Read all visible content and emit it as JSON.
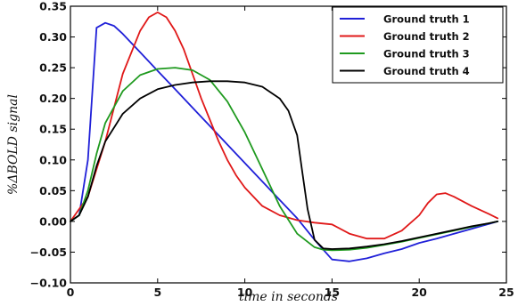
{
  "chart_data": {
    "type": "line",
    "xlabel": "time in seconds",
    "ylabel": "%ΔBOLD signal",
    "xlim": [
      0,
      25
    ],
    "ylim": [
      -0.1,
      0.35
    ],
    "x_ticks": [
      0,
      5,
      10,
      15,
      20,
      25
    ],
    "x_tick_labels": [
      "0",
      "5",
      "10",
      "15",
      "20",
      "25"
    ],
    "y_ticks": [
      -0.1,
      -0.05,
      0.0,
      0.05,
      0.1,
      0.15,
      0.2,
      0.25,
      0.3,
      0.35
    ],
    "y_tick_labels": [
      "−0.10",
      "−0.05",
      "0.00",
      "0.05",
      "0.10",
      "0.15",
      "0.20",
      "0.25",
      "0.30",
      "0.35"
    ],
    "grid": false,
    "legend_position": "top-right",
    "series": [
      {
        "name": "Ground truth 1",
        "color": "#2020d8",
        "x": [
          0,
          0.5,
          1,
          1.5,
          2,
          2.5,
          3,
          4,
          5,
          6,
          7,
          8,
          9,
          10,
          11,
          12,
          13,
          14,
          15,
          16,
          17,
          18,
          19,
          20,
          21,
          22,
          23,
          24,
          24.5
        ],
        "y": [
          0,
          0.01,
          0.1,
          0.315,
          0.323,
          0.318,
          0.305,
          0.275,
          0.245,
          0.215,
          0.185,
          0.155,
          0.125,
          0.095,
          0.065,
          0.035,
          0.005,
          -0.03,
          -0.062,
          -0.065,
          -0.06,
          -0.052,
          -0.045,
          -0.035,
          -0.028,
          -0.02,
          -0.012,
          -0.004,
          0
        ]
      },
      {
        "name": "Ground truth 2",
        "color": "#e01818",
        "x": [
          0,
          1,
          2,
          3,
          4,
          4.5,
          5,
          5.5,
          6,
          6.5,
          7,
          7.5,
          8,
          8.5,
          9,
          9.5,
          10,
          11,
          12,
          13,
          14,
          15,
          16,
          17,
          18,
          19,
          20,
          20.5,
          21,
          21.5,
          22,
          23,
          24,
          24.5
        ],
        "y": [
          0,
          0.04,
          0.13,
          0.24,
          0.31,
          0.332,
          0.34,
          0.332,
          0.31,
          0.28,
          0.24,
          0.2,
          0.165,
          0.13,
          0.1,
          0.075,
          0.055,
          0.025,
          0.01,
          0.002,
          -0.002,
          -0.005,
          -0.02,
          -0.028,
          -0.028,
          -0.015,
          0.01,
          0.03,
          0.044,
          0.046,
          0.04,
          0.025,
          0.012,
          0.005
        ]
      },
      {
        "name": "Ground truth 3",
        "color": "#1f9a1f",
        "x": [
          0,
          0.5,
          1,
          1.5,
          2,
          3,
          4,
          5,
          6,
          7,
          8,
          9,
          10,
          11,
          12,
          13,
          14,
          14.5,
          15,
          16,
          17,
          18,
          19,
          20,
          21,
          22,
          23,
          24,
          24.5
        ],
        "y": [
          0,
          0.01,
          0.05,
          0.11,
          0.16,
          0.212,
          0.238,
          0.248,
          0.25,
          0.246,
          0.23,
          0.195,
          0.145,
          0.085,
          0.025,
          -0.02,
          -0.042,
          -0.046,
          -0.047,
          -0.046,
          -0.043,
          -0.038,
          -0.033,
          -0.027,
          -0.021,
          -0.015,
          -0.009,
          -0.003,
          0
        ]
      },
      {
        "name": "Ground truth 4",
        "color": "#000000",
        "x": [
          0,
          0.5,
          1,
          1.5,
          2,
          3,
          4,
          5,
          6,
          7,
          8,
          9,
          10,
          11,
          12,
          12.5,
          13,
          13.3,
          13.6,
          14,
          14.5,
          15,
          16,
          17,
          18,
          19,
          20,
          21,
          22,
          23,
          24,
          24.5
        ],
        "y": [
          0,
          0.01,
          0.04,
          0.09,
          0.13,
          0.175,
          0.2,
          0.215,
          0.222,
          0.226,
          0.228,
          0.228,
          0.226,
          0.219,
          0.2,
          0.18,
          0.14,
          0.08,
          0.02,
          -0.03,
          -0.044,
          -0.045,
          -0.044,
          -0.041,
          -0.037,
          -0.032,
          -0.026,
          -0.02,
          -0.014,
          -0.008,
          -0.003,
          0
        ]
      }
    ]
  }
}
